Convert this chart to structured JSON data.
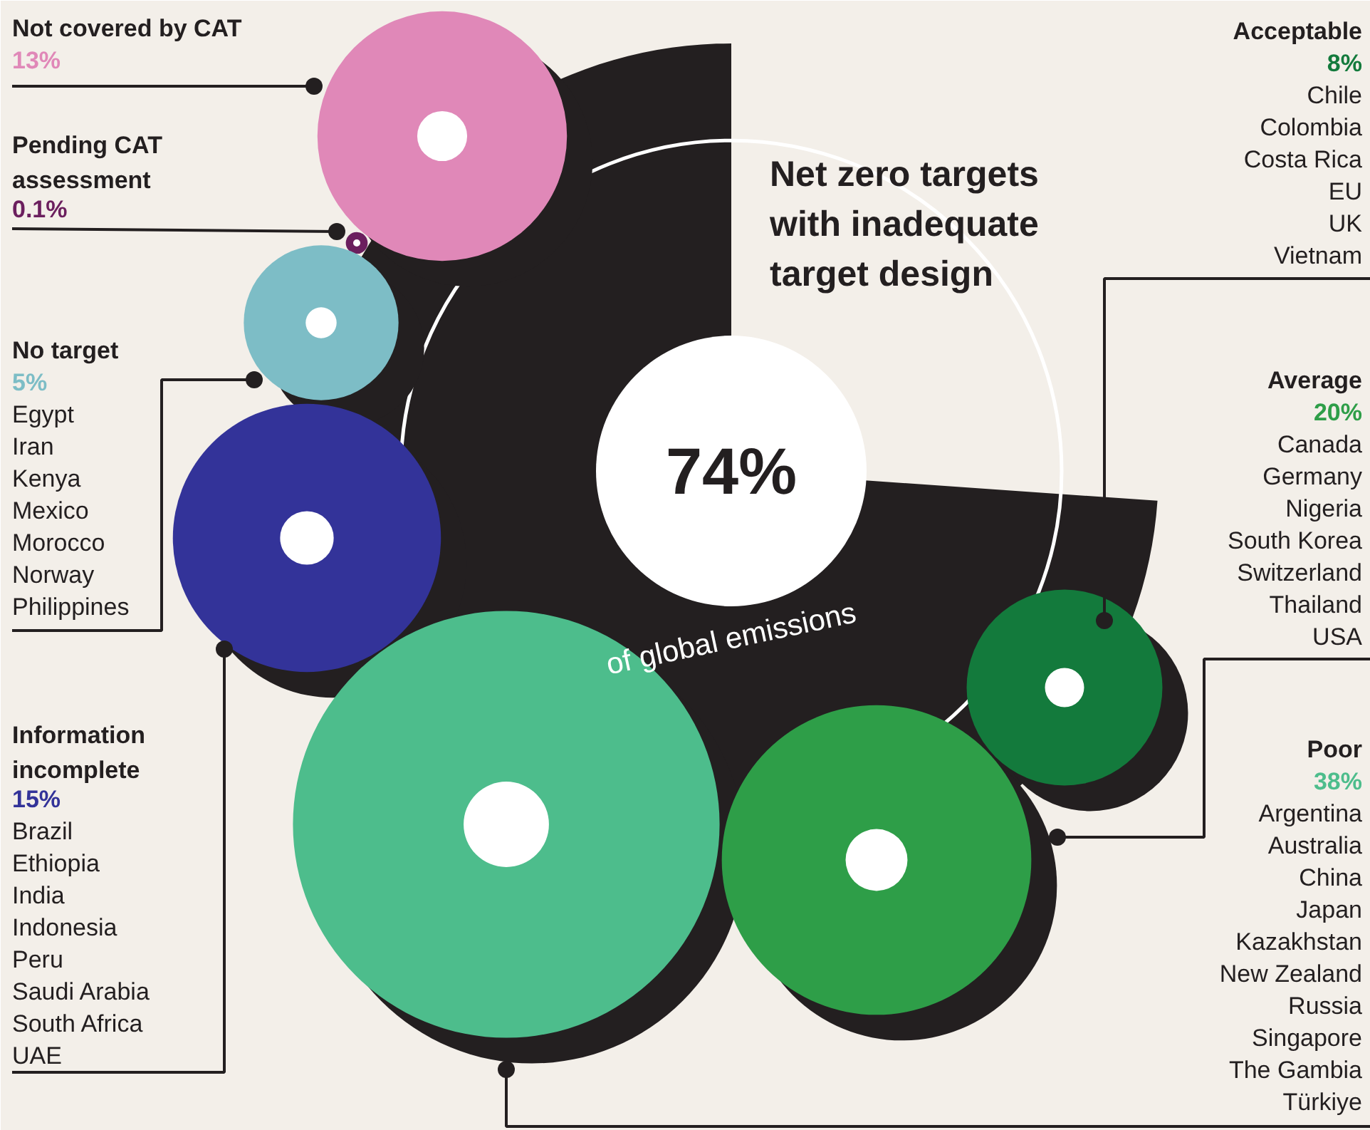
{
  "chart_data": {
    "type": "other",
    "title": "Net zero targets\nwith inadequate\ntarget design",
    "categories": [
      "Not covered by CAT",
      "Pending CAT\nassessment",
      "No target",
      "Information\nincomplete",
      "Acceptable",
      "Average",
      "Poor"
    ],
    "values": [
      13,
      0.1,
      5,
      15,
      8,
      20,
      38
    ],
    "value_labels": [
      "13%",
      "0.1%",
      "5%",
      "15%",
      "8%",
      "20%",
      "38%"
    ],
    "colors": [
      "#e088b8",
      "#6b1f5e",
      "#7dbdc6",
      "#333399",
      "#137a3c",
      "#2e9e48",
      "#4dbd8c"
    ],
    "annotations": [
      "74%",
      "of global emissions",
      {
        "text": "Egypt",
        "x": "No target"
      },
      {
        "text": "Iran",
        "x": "No target"
      },
      {
        "text": "Kenya",
        "x": "No target"
      },
      {
        "text": "Mexico",
        "x": "No target"
      },
      {
        "text": "Morocco",
        "x": "No target"
      },
      {
        "text": "Norway",
        "x": "No target"
      },
      {
        "text": "Philippines",
        "x": "No target"
      },
      {
        "text": "Brazil",
        "x": "Information\nincomplete"
      },
      {
        "text": "Ethiopia",
        "x": "Information\nincomplete"
      },
      {
        "text": "India",
        "x": "Information\nincomplete"
      },
      {
        "text": "Indonesia",
        "x": "Information\nincomplete"
      },
      {
        "text": "Peru",
        "x": "Information\nincomplete"
      },
      {
        "text": "Saudi Arabia",
        "x": "Information\nincomplete"
      },
      {
        "text": "South Africa",
        "x": "Information\nincomplete"
      },
      {
        "text": "UAE",
        "x": "Information\nincomplete"
      },
      {
        "text": "Chile",
        "x": "Acceptable"
      },
      {
        "text": "Colombia",
        "x": "Acceptable"
      },
      {
        "text": "Costa Rica",
        "x": "Acceptable"
      },
      {
        "text": "EU",
        "x": "Acceptable"
      },
      {
        "text": "UK",
        "x": "Acceptable"
      },
      {
        "text": "Vietnam",
        "x": "Acceptable"
      },
      {
        "text": "Canada",
        "x": "Average"
      },
      {
        "text": "Germany",
        "x": "Average"
      },
      {
        "text": "Nigeria",
        "x": "Average"
      },
      {
        "text": "South Korea",
        "x": "Average"
      },
      {
        "text": "Switzerland",
        "x": "Average"
      },
      {
        "text": "Thailand",
        "x": "Average"
      },
      {
        "text": "USA",
        "x": "Average"
      },
      {
        "text": "Argentina",
        "x": "Poor"
      },
      {
        "text": "Australia",
        "x": "Poor"
      },
      {
        "text": "China",
        "x": "Poor"
      },
      {
        "text": "Japan",
        "x": "Poor"
      },
      {
        "text": "Kazakhstan",
        "x": "Poor"
      },
      {
        "text": "New Zealand",
        "x": "Poor"
      },
      {
        "text": "Russia",
        "x": "Poor"
      },
      {
        "text": "Singapore",
        "x": "Poor"
      },
      {
        "text": "The Gambia",
        "x": "Poor"
      },
      {
        "text": "Türkiye",
        "x": "Poor"
      }
    ]
  }
}
